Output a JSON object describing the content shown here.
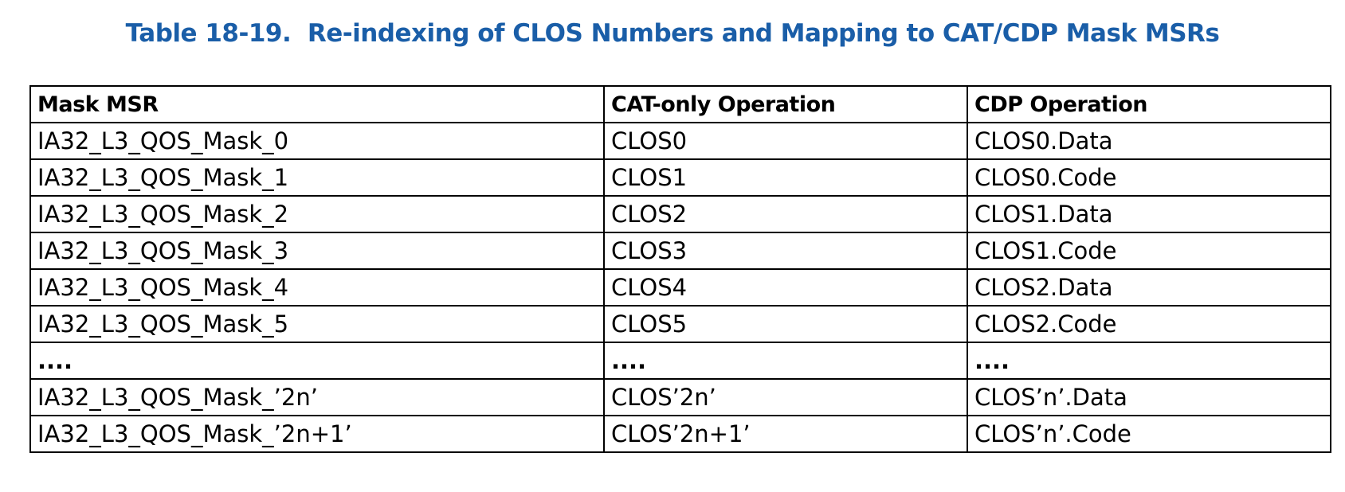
{
  "caption": "Table 18-19.  Re-indexing of CLOS Numbers and Mapping to CAT/CDP Mask MSRs",
  "table": {
    "headers": [
      "Mask MSR",
      "CAT-only Operation",
      "CDP Operation"
    ],
    "rows": [
      [
        "IA32_L3_QOS_Mask_0",
        "CLOS0",
        "CLOS0.Data"
      ],
      [
        "IA32_L3_QOS_Mask_1",
        "CLOS1",
        "CLOS0.Code"
      ],
      [
        "IA32_L3_QOS_Mask_2",
        "CLOS2",
        "CLOS1.Data"
      ],
      [
        "IA32_L3_QOS_Mask_3",
        "CLOS3",
        "CLOS1.Code"
      ],
      [
        "IA32_L3_QOS_Mask_4",
        "CLOS4",
        "CLOS2.Data"
      ],
      [
        "IA32_L3_QOS_Mask_5",
        "CLOS5",
        "CLOS2.Code"
      ],
      [
        "....",
        "....",
        "...."
      ],
      [
        "IA32_L3_QOS_Mask_’2n’",
        "CLOS’2n’",
        "CLOS’n’.Data"
      ],
      [
        "IA32_L3_QOS_Mask_’2n+1’",
        "CLOS’2n+1’",
        "CLOS’n’.Code"
      ]
    ]
  }
}
